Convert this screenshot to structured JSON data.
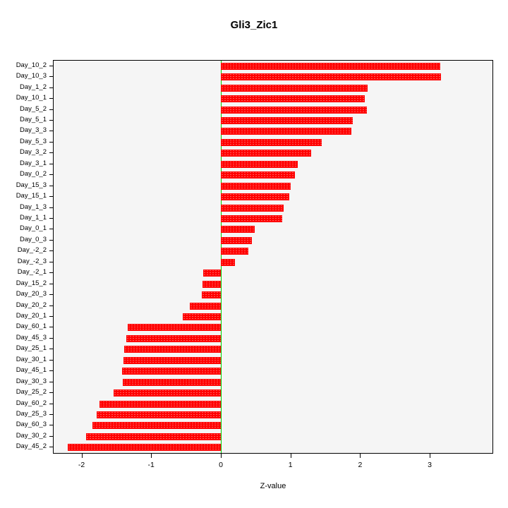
{
  "chart_data": {
    "type": "bar",
    "orientation": "horizontal",
    "title": "Gli3_Zic1",
    "xlabel": "Z-value",
    "ylabel": "",
    "xlim": [
      -2.4,
      3.9
    ],
    "xticks": [
      -2,
      -1,
      0,
      1,
      2,
      3
    ],
    "grid": false,
    "legend": false,
    "bar_color": "#ff0000",
    "zero_line_color": "#00cc00",
    "categories": [
      "Day_10_2",
      "Day_10_3",
      "Day_1_2",
      "Day_10_1",
      "Day_5_2",
      "Day_5_1",
      "Day_3_3",
      "Day_5_3",
      "Day_3_2",
      "Day_3_1",
      "Day_0_2",
      "Day_15_3",
      "Day_15_1",
      "Day_1_3",
      "Day_1_1",
      "Day_0_1",
      "Day_0_3",
      "Day_-2_2",
      "Day_-2_3",
      "Day_-2_1",
      "Day_15_2",
      "Day_20_3",
      "Day_20_2",
      "Day_20_1",
      "Day_60_1",
      "Day_45_3",
      "Day_25_1",
      "Day_30_1",
      "Day_45_1",
      "Day_30_3",
      "Day_25_2",
      "Day_60_2",
      "Day_25_3",
      "Day_60_3",
      "Day_30_2",
      "Day_45_2"
    ],
    "values": [
      3.15,
      3.16,
      2.11,
      2.07,
      2.1,
      1.89,
      1.87,
      1.45,
      1.3,
      1.1,
      1.06,
      1.0,
      0.98,
      0.9,
      0.88,
      0.49,
      0.45,
      0.39,
      0.2,
      -0.25,
      -0.26,
      -0.27,
      -0.45,
      -0.55,
      -1.34,
      -1.36,
      -1.39,
      -1.4,
      -1.42,
      -1.41,
      -1.54,
      -1.74,
      -1.78,
      -1.84,
      -1.93,
      -2.2
    ]
  }
}
